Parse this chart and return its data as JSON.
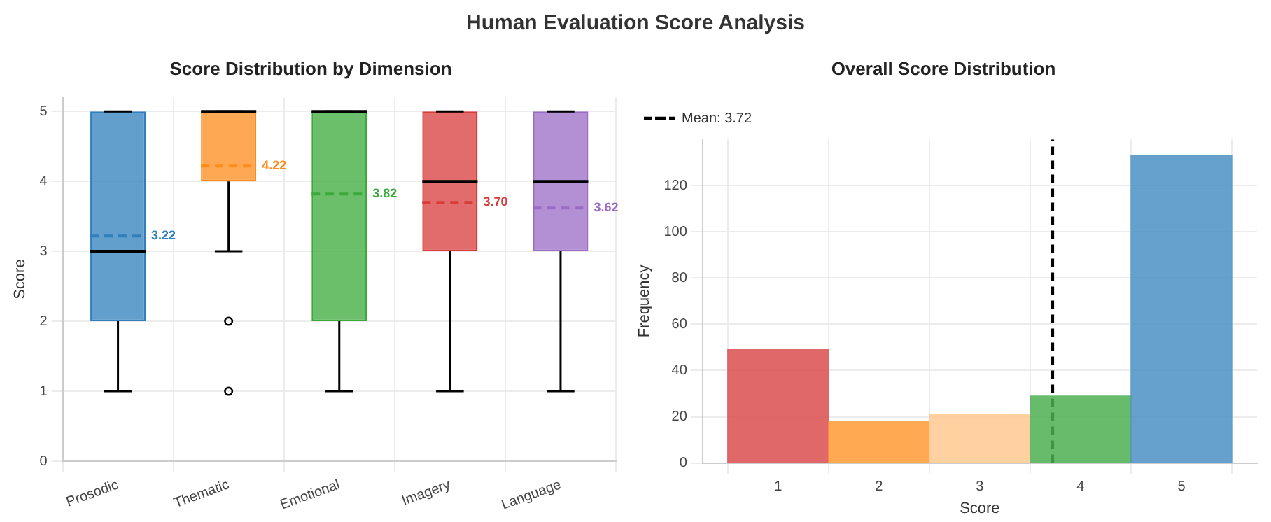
{
  "chart_data": [
    {
      "type": "box",
      "title": "Score Distribution by Dimension",
      "ylabel": "Score",
      "categories": [
        "Prosodic",
        "Thematic",
        "Emotional",
        "Imagery",
        "Language"
      ],
      "colors": [
        "#2f7fbd",
        "#ff8c1a",
        "#3aaa3a",
        "#d93a3a",
        "#9a6cc4"
      ],
      "boxes": [
        {
          "low": 1,
          "q1": 2,
          "median": 3,
          "q3": 5,
          "high": 5,
          "mean": 3.22
        },
        {
          "low": 3,
          "q1": 4,
          "median": 5,
          "q3": 5,
          "high": 5,
          "mean": 4.22,
          "outliers": [
            2,
            1
          ]
        },
        {
          "low": 1,
          "q1": 2,
          "median": 5,
          "q3": 5,
          "high": 5,
          "mean": 3.82
        },
        {
          "low": 1,
          "q1": 3,
          "median": 4,
          "q3": 5,
          "high": 5,
          "mean": 3.7
        },
        {
          "low": 1,
          "q1": 3,
          "median": 4,
          "q3": 5,
          "high": 5,
          "mean": 3.62
        }
      ],
      "value_labels": [
        "3.22",
        "4.22",
        "3.82",
        "3.70",
        "3.62"
      ],
      "ylim": [
        0,
        5.2
      ],
      "yticks": [
        0,
        1,
        2,
        3,
        4,
        5
      ],
      "grid": true,
      "line_style": "dashed",
      "annotations": [
        "Human Evaluation Score Analysis"
      ]
    },
    {
      "type": "histogram",
      "title": "Overall Score Distribution",
      "xlabel": "Score",
      "ylabel": "Frequency",
      "bins": [
        0.5,
        1.5,
        2.5,
        3.5,
        4.5,
        5.5
      ],
      "values": [
        49,
        18,
        21,
        29,
        133
      ],
      "colors": [
        "#dc4d4d",
        "#ff9933",
        "#ffc990",
        "#4caf50",
        "#4a90c4"
      ],
      "xlim": [
        0.25,
        5.75
      ],
      "xticks": [
        1,
        2,
        3,
        4,
        5
      ],
      "ylim": [
        0,
        140
      ],
      "yticks": [
        0,
        20,
        40,
        60,
        80,
        100,
        120
      ],
      "ref_lines": [
        {
          "axis": "x",
          "value": 3.72,
          "label": "Mean: 3.72",
          "color": "#000000",
          "line_style": "dashed"
        }
      ],
      "legend": "top left",
      "grid": true
    }
  ]
}
